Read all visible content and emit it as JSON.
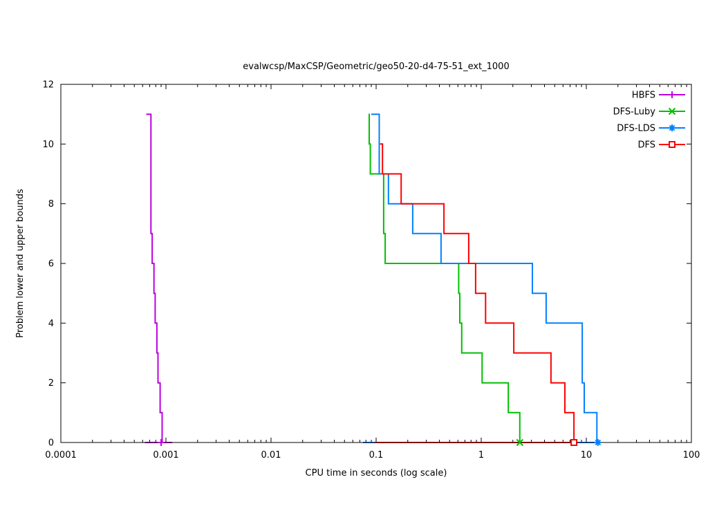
{
  "title": "evalwcsp/MaxCSP/Geometric/geo50-20-d4-75-51_ext_1000",
  "x_axis": {
    "label": "CPU time in seconds (log scale)",
    "scale": "log",
    "min": 0.0001,
    "max": 100,
    "tick_values": [
      0.0001,
      0.001,
      0.01,
      0.1,
      1,
      10,
      100
    ],
    "tick_labels": [
      "0.0001",
      "0.001",
      "0.01",
      "0.1",
      "1",
      "10",
      "100"
    ]
  },
  "y_axis": {
    "label": "Problem lower and upper bounds",
    "scale": "linear",
    "min": 0,
    "max": 12,
    "tick_values": [
      0,
      2,
      4,
      6,
      8,
      10,
      12
    ],
    "tick_labels": [
      "0",
      "2",
      "4",
      "6",
      "8",
      "10",
      "12"
    ]
  },
  "legend": {
    "position": "top-right-inside",
    "entries": [
      "HBFS",
      "DFS-Luby",
      "DFS-LDS",
      "DFS"
    ]
  },
  "chart_data": {
    "type": "line",
    "title": "evalwcsp/MaxCSP/Geometric/geo50-20-d4-75-51_ext_1000",
    "xlabel": "CPU time in seconds (log scale)",
    "ylabel": "Problem lower and upper bounds",
    "x_scale": "log",
    "xlim": [
      0.0001,
      100
    ],
    "ylim": [
      0,
      12
    ],
    "grid": false,
    "style": "steps (each series = upper-bound staircase + lower-bound flat line at 0 + end marker)",
    "series": [
      {
        "name": "HBFS",
        "color": "#BB00DD",
        "marker": "plus",
        "upper_bound_steps": [
          [
            0.00065,
            11
          ],
          [
            0.00072,
            7
          ],
          [
            0.00074,
            6
          ],
          [
            0.00077,
            5
          ],
          [
            0.00079,
            4
          ],
          [
            0.00082,
            3
          ],
          [
            0.00084,
            2
          ],
          [
            0.00088,
            1
          ],
          [
            0.00092,
            0
          ]
        ],
        "lower_bound_y": 0,
        "lower_bound_span": [
          0.00063,
          0.00115
        ],
        "marker_points": [
          [
            0.0009,
            0
          ]
        ]
      },
      {
        "name": "DFS-Luby",
        "color": "#00C000",
        "marker": "cross",
        "upper_bound_steps": [
          [
            0.085,
            11
          ],
          [
            0.086,
            10
          ],
          [
            0.088,
            9
          ],
          [
            0.118,
            7
          ],
          [
            0.122,
            6
          ],
          [
            0.61,
            5
          ],
          [
            0.625,
            4
          ],
          [
            0.652,
            3
          ],
          [
            1.02,
            2
          ],
          [
            1.81,
            1
          ],
          [
            2.33,
            0
          ]
        ],
        "lower_bound_y": 0,
        "lower_bound_span": [
          0.085,
          2.33
        ],
        "marker_points": [
          [
            2.33,
            0
          ]
        ]
      },
      {
        "name": "DFS-LDS",
        "color": "#0080FF",
        "marker": "asterisk",
        "upper_bound_steps": [
          [
            0.09,
            11
          ],
          [
            0.107,
            9
          ],
          [
            0.131,
            8
          ],
          [
            0.223,
            7
          ],
          [
            0.415,
            6
          ],
          [
            3.07,
            5
          ],
          [
            4.15,
            4
          ],
          [
            9.14,
            2
          ],
          [
            9.55,
            1
          ],
          [
            12.6,
            0
          ]
        ],
        "lower_bound_y": 0,
        "lower_bound_span": [
          0.075,
          12.9
        ],
        "marker_points": [
          [
            12.9,
            0
          ]
        ]
      },
      {
        "name": "DFS",
        "color": "#FF0000",
        "marker": "square",
        "upper_bound_steps": [
          [
            0.109,
            10
          ],
          [
            0.115,
            9
          ],
          [
            0.173,
            8
          ],
          [
            0.442,
            7
          ],
          [
            0.76,
            6
          ],
          [
            0.885,
            5
          ],
          [
            1.1,
            4
          ],
          [
            2.04,
            3
          ],
          [
            4.61,
            2
          ],
          [
            6.25,
            1
          ],
          [
            7.62,
            0
          ]
        ],
        "lower_bound_y": 0,
        "lower_bound_span": [
          0.097,
          7.62
        ],
        "marker_points": [
          [
            7.62,
            0
          ]
        ]
      }
    ]
  }
}
